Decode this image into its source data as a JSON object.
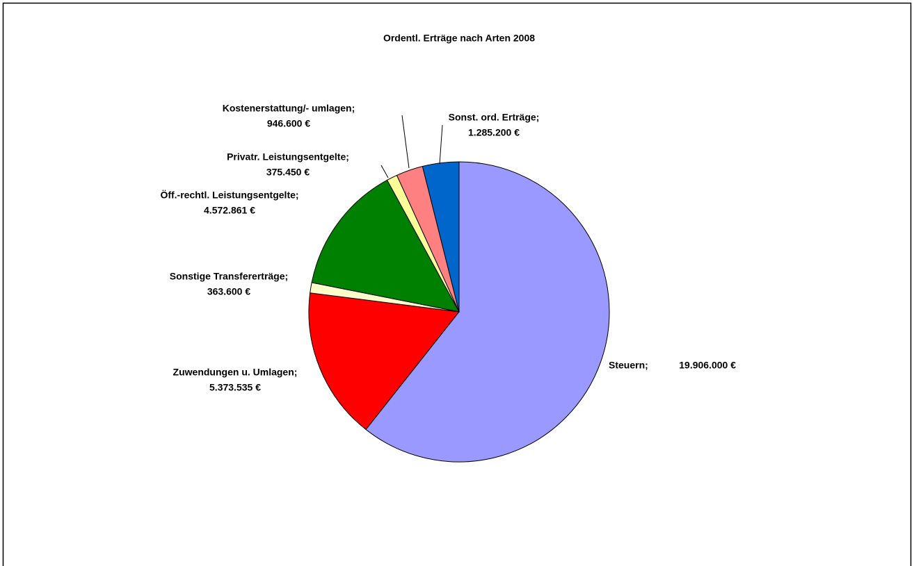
{
  "chart_data": {
    "type": "pie",
    "title": "Ordentl. Erträge nach Arten 2008",
    "categories": [
      "Steuern;",
      "Zuwendungen u. Umlagen;",
      "Sonstige Transfererträge;",
      "Öff.-rechtl. Leistungsentgelte;",
      "Privatr. Leistungsentgelte;",
      "Kostenerstattung/- umlagen;",
      "Sonst. ord. Erträge;"
    ],
    "values": [
      19906000,
      5373535,
      363600,
      4572861,
      375450,
      946600,
      1285200
    ],
    "value_labels": [
      "19.906.000 €",
      "5.373.535 €",
      "363.600 €",
      "4.572.861 €",
      "375.450 €",
      "946.600 €",
      "1.285.200 €"
    ],
    "colors": [
      "#9999ff",
      "#ff0000",
      "#ffffcc",
      "#008000",
      "#ffff99",
      "#ff8080",
      "#0066cc"
    ]
  }
}
